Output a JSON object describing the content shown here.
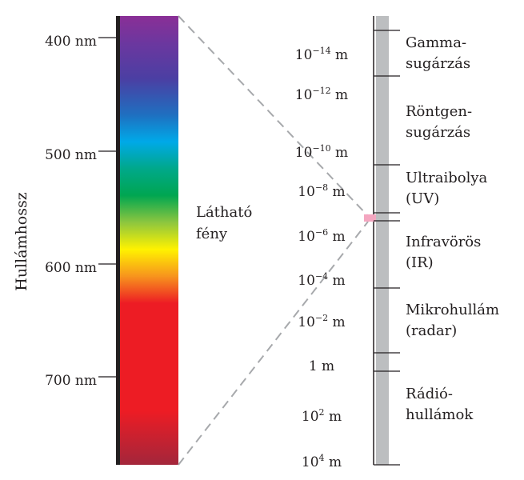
{
  "axis_title": "Hullámhossz",
  "visible_label": [
    "Látható",
    "fény"
  ],
  "nm_ticks": [
    "400 nm",
    "500 nm",
    "600 nm",
    "700 nm"
  ],
  "meter_ticks": [
    {
      "base": "10",
      "sup": "−14",
      "unit": "m"
    },
    {
      "base": "10",
      "sup": "−12",
      "unit": "m"
    },
    {
      "base": "10",
      "sup": "−10",
      "unit": "m"
    },
    {
      "base": "10",
      "sup": "−8",
      "unit": "m"
    },
    {
      "base": "10",
      "sup": "−6",
      "unit": "m"
    },
    {
      "base": "10",
      "sup": "−4",
      "unit": "m"
    },
    {
      "base": "10",
      "sup": "−2",
      "unit": "m"
    },
    {
      "base": "",
      "sup": "",
      "unit": "1 m"
    },
    {
      "base": "10",
      "sup": "2",
      "unit": "m"
    },
    {
      "base": "10",
      "sup": "4",
      "unit": "m"
    }
  ],
  "bands": [
    {
      "lines": [
        "Gamma-",
        "sugárzás"
      ]
    },
    {
      "lines": [
        "Röntgen-",
        "sugárzás"
      ]
    },
    {
      "lines": [
        "Ultraibolya",
        "(UV)"
      ]
    },
    {
      "lines": [
        "Infravörös",
        "(IR)"
      ]
    },
    {
      "lines": [
        "Mikrohullám",
        "(radar)"
      ]
    },
    {
      "lines": [
        "Rádió-",
        "hullámok"
      ]
    }
  ],
  "colors": {
    "text": "#231f20",
    "scale_bar": "#bcbec0",
    "dash": "#a7a9ac",
    "visible_marker": "#f4a6c0",
    "spectrum": [
      "#8a2f96",
      "#4b3fa3",
      "#1f6fc0",
      "#00a9e8",
      "#00a88a",
      "#00a651",
      "#8dc63f",
      "#fff200",
      "#f7941d",
      "#ed1c24",
      "#ed1c24",
      "#a3263b"
    ]
  }
}
